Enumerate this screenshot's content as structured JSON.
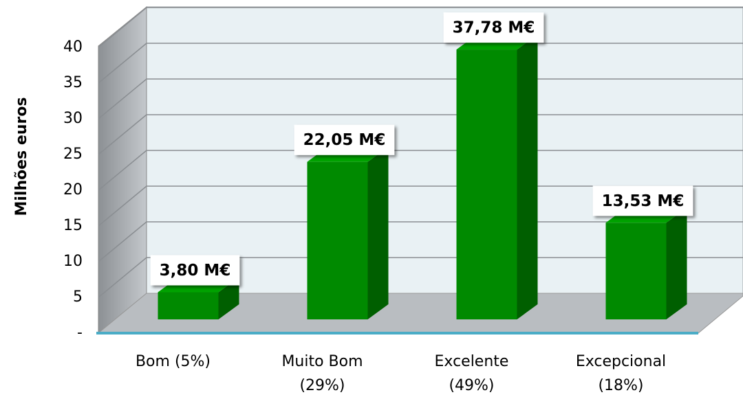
{
  "chart_data": {
    "type": "bar3d",
    "y_label": "Milhões euros",
    "categories": [
      [
        "Bom (5%)"
      ],
      [
        "Muito Bom",
        "(29%)"
      ],
      [
        "Excelente",
        "(49%)"
      ],
      [
        "Excepcional",
        "(18%)"
      ]
    ],
    "values": [
      3.8,
      22.05,
      37.78,
      13.53
    ],
    "value_labels": [
      "3,80 M€",
      "22,05 M€",
      "37,78 M€",
      "13,53 M€"
    ],
    "color": "#008a00",
    "ylim": [
      0,
      40
    ],
    "yticks": [
      {
        "value": 0,
        "label": "-"
      },
      5,
      10,
      15,
      20,
      25,
      30,
      35,
      40
    ],
    "grid": true
  }
}
